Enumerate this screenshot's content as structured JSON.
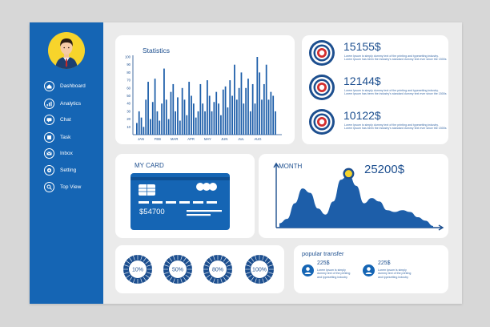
{
  "sidebar": {
    "items": [
      {
        "label": "Dashboard",
        "icon": "home-icon"
      },
      {
        "label": "Analytics",
        "icon": "analytics-icon"
      },
      {
        "label": "Chat",
        "icon": "chat-icon"
      },
      {
        "label": "Task",
        "icon": "task-icon"
      },
      {
        "label": "Inbox",
        "icon": "inbox-icon"
      },
      {
        "label": "Setting",
        "icon": "gear-icon"
      },
      {
        "label": "Top View",
        "icon": "search-icon"
      }
    ]
  },
  "statistics": {
    "title": "Statistics",
    "chart_data": {
      "type": "bar",
      "title": "Statistics",
      "x_tick_labels": [
        "JAN",
        "FEB",
        "MAR",
        "APR",
        "MAY",
        "JUN",
        "JUL",
        "AUG"
      ],
      "y_tick_labels": [
        "10",
        "20",
        "30",
        "40",
        "50",
        "60",
        "70",
        "80",
        "90",
        "100"
      ],
      "ylim": [
        0,
        100
      ],
      "values": [
        15,
        30,
        22,
        10,
        45,
        68,
        20,
        42,
        72,
        30,
        18,
        40,
        85,
        45,
        20,
        55,
        65,
        30,
        48,
        18,
        60,
        45,
        25,
        68,
        50,
        40,
        22,
        30,
        65,
        40,
        30,
        70,
        50,
        30,
        42,
        55,
        40,
        25,
        58,
        62,
        35,
        70,
        50,
        90,
        45,
        60,
        80,
        40,
        60,
        72,
        30,
        65,
        40,
        100,
        80,
        45,
        65,
        90,
        45,
        55,
        50,
        30
      ],
      "bar_color": "#1d5ea9",
      "grid": false
    }
  },
  "stats": [
    {
      "amount": "15155$",
      "text": "Lorem Ipsum is simply dummy text of the printing and typesetting industry. Lorem Ipsum has been the industry's standard dummy text ever since the 1500s"
    },
    {
      "amount": "12144$",
      "text": "Lorem Ipsum is simply dummy text of the printing and typesetting industry. Lorem Ipsum has been the industry's standard dummy text ever since the 1500s"
    },
    {
      "amount": "10122$",
      "text": "Lorem Ipsum is simply dummy text of the printing and typesetting industry. Lorem Ipsum has been the industry's standard dummy text ever since the 1500s"
    }
  ],
  "my_card": {
    "title": "MY CARD",
    "balance": "$54700"
  },
  "month": {
    "title": "MONTH",
    "value": "25200$",
    "chart_data": {
      "type": "area",
      "x": [
        0,
        1,
        2,
        3,
        4,
        5,
        6,
        7,
        8,
        9,
        10,
        11,
        12,
        13,
        14,
        15,
        16,
        17,
        18,
        19,
        20
      ],
      "values": [
        5,
        10,
        28,
        45,
        40,
        22,
        15,
        30,
        55,
        62,
        48,
        28,
        34,
        30,
        20,
        18,
        20,
        18,
        12,
        8,
        2
      ],
      "color": "#1d5ea9",
      "marker_index": 9,
      "marker_color": "#f7d42b"
    }
  },
  "progress": [
    {
      "label": "10%",
      "value": 0.1
    },
    {
      "label": "50%",
      "value": 0.5
    },
    {
      "label": "80%",
      "value": 0.8
    },
    {
      "label": "100%",
      "value": 1.0
    }
  ],
  "popular_transfer": {
    "title": "popular transfer",
    "items": [
      {
        "amount": "225$",
        "text": "Lorem Ipsum is simply dummy text of the printing and typesetting industry"
      },
      {
        "amount": "225$",
        "text": "Lorem Ipsum is simply dummy text of the printing and typesetting industry"
      }
    ]
  },
  "colors": {
    "primary": "#1565b4",
    "navy": "#1d4f8f",
    "accent_red": "#d32f2f",
    "yellow": "#f7d42b"
  }
}
